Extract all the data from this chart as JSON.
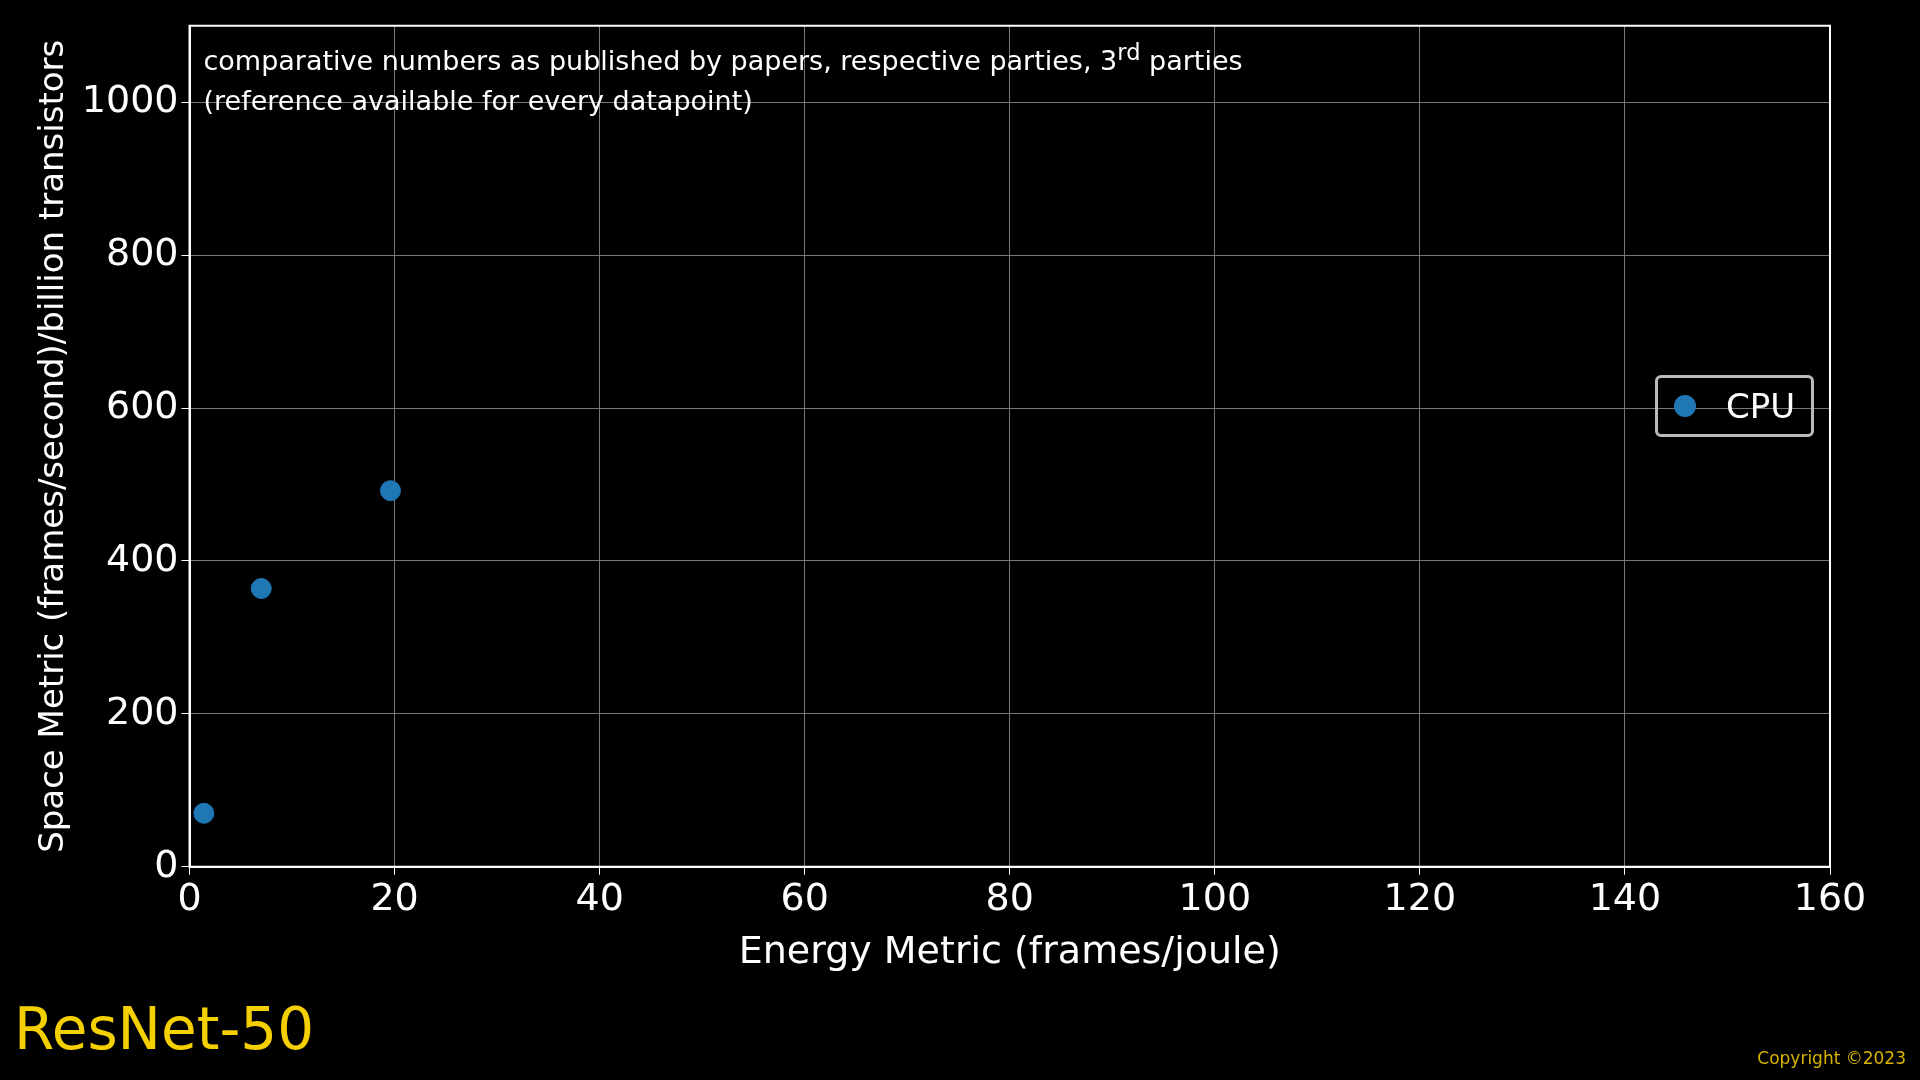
{
  "chart_data": {
    "type": "scatter",
    "title": "ResNet-50",
    "xlabel": "Energy Metric (frames/joule)",
    "ylabel": "Space Metric (frames/second)/billion transistors",
    "annotations": [
      "comparative numbers as published by papers, respective parties, 3$^{rd}$ parties\n(reference available for every datapoint)",
      "Copyright ©2023"
    ],
    "series": [
      {
        "name": "CPU",
        "color": "#1f77b4",
        "x": [
          1.4,
          7.0,
          19.6
        ],
        "values": [
          70,
          364,
          492
        ]
      }
    ],
    "xlim": [
      0,
      160
    ],
    "xticks": [
      0,
      20,
      40,
      60,
      80,
      100,
      120,
      140,
      160
    ],
    "ylim": [
      0,
      1100
    ],
    "yticks": [
      0,
      200,
      400,
      600,
      800,
      1000
    ],
    "grid": true,
    "legend": "right",
    "marker": "circle"
  }
}
